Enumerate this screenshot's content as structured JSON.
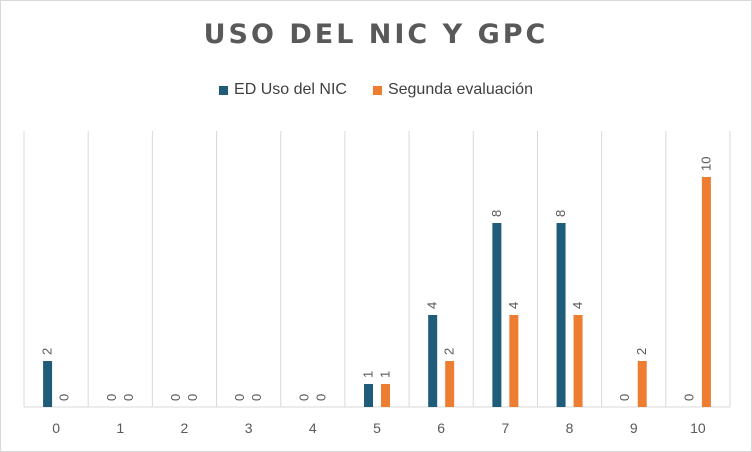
{
  "chart_data": {
    "type": "bar",
    "title": "USO DEL NIC Y GPC",
    "categories": [
      "0",
      "1",
      "2",
      "3",
      "4",
      "5",
      "6",
      "7",
      "8",
      "9",
      "10"
    ],
    "series": [
      {
        "name": "ED Uso del NIC",
        "color": "#1F5C7A",
        "values": [
          2,
          0,
          0,
          0,
          0,
          1,
          4,
          8,
          8,
          0,
          0
        ]
      },
      {
        "name": "Segunda evaluación",
        "color": "#ED7D31",
        "values": [
          0,
          0,
          0,
          0,
          0,
          1,
          2,
          4,
          4,
          2,
          10
        ]
      }
    ],
    "ylim": [
      0,
      10
    ],
    "grid": "vertical category separators",
    "legend_position": "top"
  }
}
